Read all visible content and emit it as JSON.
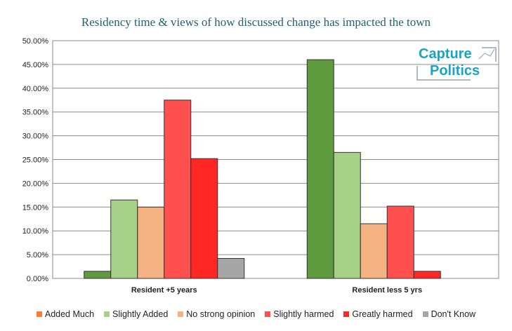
{
  "chart_data": {
    "type": "bar",
    "title": "Residency time & views of how discussed change has impacted the town",
    "categories": [
      "Resident +5 years",
      "Resident less 5 yrs"
    ],
    "ylim": [
      0,
      50
    ],
    "yticks": [
      "0.00%",
      "5.00%",
      "10.00%",
      "15.00%",
      "20.00%",
      "25.00%",
      "30.00%",
      "35.00%",
      "40.00%",
      "45.00%",
      "50.00%"
    ],
    "legend_position": "bottom",
    "grid": true,
    "series": [
      {
        "name": "Added Much",
        "color": "#f07f3c",
        "bar_color": "#5f9a3e",
        "values": [
          1.5,
          46.0
        ]
      },
      {
        "name": "Slightly Added",
        "color": "#a7d088",
        "bar_color": "#a7d088",
        "values": [
          16.5,
          26.5
        ]
      },
      {
        "name": "No strong opinion",
        "color": "#f5b383",
        "bar_color": "#f5b383",
        "values": [
          15.0,
          11.5
        ]
      },
      {
        "name": "Slightly harmed",
        "color": "#ff5050",
        "bar_color": "#ff5050",
        "values": [
          37.5,
          15.2
        ]
      },
      {
        "name": "Greatly harmed",
        "color": "#ff2626",
        "bar_color": "#ff2626",
        "values": [
          25.2,
          1.5
        ]
      },
      {
        "name": "Don't Know",
        "color": "#a6a6a6",
        "bar_color": "#a6a6a6",
        "values": [
          4.2,
          0
        ]
      }
    ]
  },
  "logo": {
    "line1": "Capture",
    "line2": "Politics"
  }
}
